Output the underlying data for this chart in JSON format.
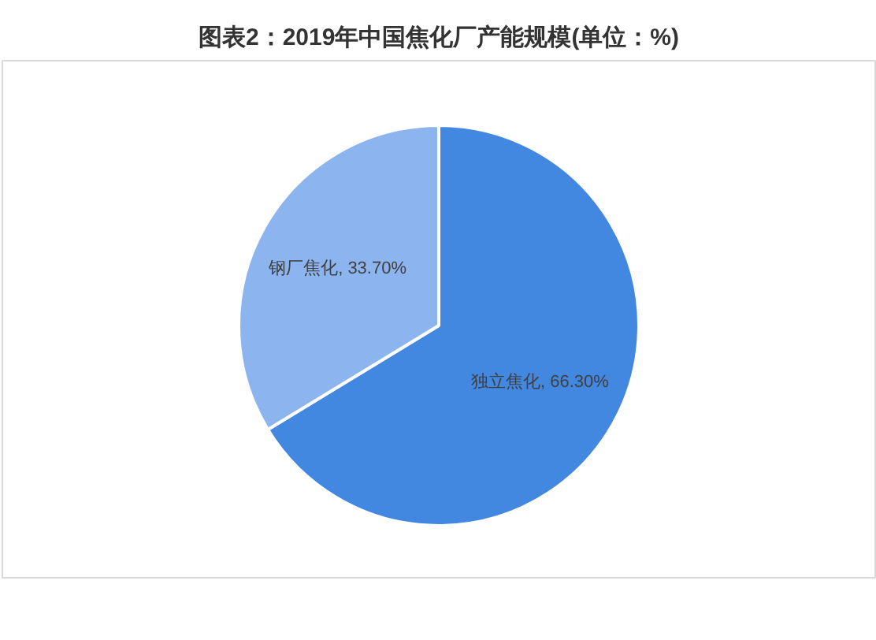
{
  "chart_data": {
    "type": "pie",
    "title": "图表2：2019年中国焦化厂产能规模(单位：%)",
    "categories": [
      "独立焦化",
      "钢厂焦化"
    ],
    "values": [
      66.3,
      33.7
    ],
    "colors": [
      "#4287e0",
      "#8cb4ef"
    ],
    "value_labels": [
      "66.30%",
      "33.70%"
    ]
  }
}
